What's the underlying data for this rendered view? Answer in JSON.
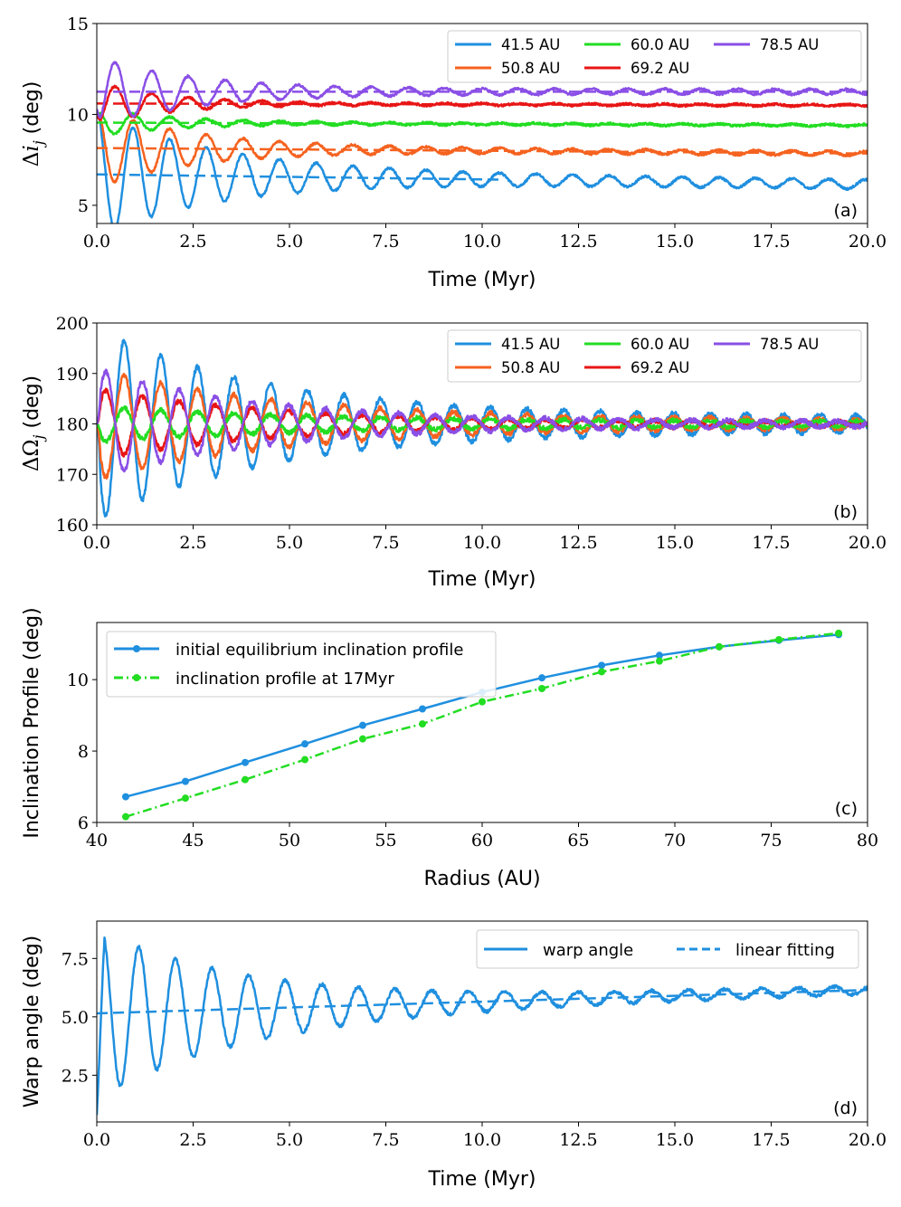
{
  "figure": {
    "panels": [
      "a",
      "b",
      "c",
      "d"
    ]
  },
  "chart_data": [
    {
      "type": "line",
      "panel_tag": "(a)",
      "xlabel": "Time (Myr)",
      "ylabel_prefix": "Δ",
      "ylabel_symbol": "i",
      "ylabel_sub": "j",
      "ylabel_unit": " (deg)",
      "xlim": [
        0,
        20
      ],
      "ylim": [
        4,
        15
      ],
      "xticks": [
        "0.0",
        "2.5",
        "5.0",
        "7.5",
        "10.0",
        "12.5",
        "15.0",
        "17.5",
        "20.0"
      ],
      "xtick_values": [
        0,
        2.5,
        5,
        7.5,
        10,
        12.5,
        15,
        17.5,
        20
      ],
      "yticks": [
        "5",
        "10",
        "15"
      ],
      "ytick_values": [
        5,
        10,
        15
      ],
      "legend_position": "top-right",
      "series": [
        {
          "name": "41.5 AU",
          "color": "#1f8fdf",
          "start": 10.0,
          "mean_start": 6.7,
          "mean_end": 6.15,
          "amp0": 3.4,
          "amp_floor": 0.25,
          "decay": 3.2,
          "period": 0.95,
          "phase": 1.6,
          "fit_end": 10.5
        },
        {
          "name": "50.8 AU",
          "color": "#f5621f",
          "start": 10.0,
          "mean_start": 8.15,
          "mean_end": 7.85,
          "amp0": 2.2,
          "amp_floor": 0.12,
          "decay": 2.5,
          "period": 0.95,
          "phase": 1.6,
          "fit_end": 20
        },
        {
          "name": "60.0 AU",
          "color": "#22dd22",
          "start": 9.8,
          "mean_start": 9.55,
          "mean_end": 9.4,
          "amp0": 0.75,
          "amp_floor": 0.05,
          "decay": 2.0,
          "period": 0.95,
          "phase": 1.6,
          "fit_end": 20
        },
        {
          "name": "69.2 AU",
          "color": "#e81515",
          "start": 10.0,
          "mean_start": 10.6,
          "mean_end": 10.5,
          "amp0": 1.2,
          "amp_floor": 0.05,
          "decay": 1.8,
          "period": 0.95,
          "phase": -1.6,
          "fit_end": 20
        },
        {
          "name": "78.5 AU",
          "color": "#8a4fe6",
          "start": 10.3,
          "mean_start": 11.25,
          "mean_end": 11.25,
          "amp0": 1.9,
          "amp_floor": 0.14,
          "decay": 2.6,
          "period": 0.95,
          "phase": -1.6,
          "fit_end": 20
        }
      ]
    },
    {
      "type": "line",
      "panel_tag": "(b)",
      "xlabel": "Time (Myr)",
      "ylabel_prefix": "ΔΩ",
      "ylabel_sub": "j",
      "ylabel_unit": " (deg)",
      "xlim": [
        0,
        20
      ],
      "ylim": [
        160,
        200
      ],
      "xticks": [
        "0.0",
        "2.5",
        "5.0",
        "7.5",
        "10.0",
        "12.5",
        "15.0",
        "17.5",
        "20.0"
      ],
      "xtick_values": [
        0,
        2.5,
        5,
        7.5,
        10,
        12.5,
        15,
        17.5,
        20
      ],
      "yticks": [
        "160",
        "170",
        "180",
        "190",
        "200"
      ],
      "ytick_values": [
        160,
        170,
        180,
        190,
        200
      ],
      "legend_position": "top-right",
      "series": [
        {
          "name": "41.5 AU",
          "color": "#1f8fdf",
          "amp0": 19,
          "amp_floor": 1.5,
          "decay": 4.5,
          "period": 0.95,
          "phase": 3.14
        },
        {
          "name": "50.8 AU",
          "color": "#f5621f",
          "amp0": 11,
          "amp_floor": 0.8,
          "decay": 5.0,
          "period": 0.95,
          "phase": 3.14
        },
        {
          "name": "60.0 AU",
          "color": "#22dd22",
          "amp0": 3.5,
          "amp_floor": 0.4,
          "decay": 6.0,
          "period": 0.95,
          "phase": 3.14
        },
        {
          "name": "69.2 AU",
          "color": "#e81515",
          "amp0": 7,
          "amp_floor": 0.4,
          "decay": 4.5,
          "period": 0.95,
          "phase": 0
        },
        {
          "name": "78.5 AU",
          "color": "#8a4fe6",
          "amp0": 11,
          "amp_floor": 0.5,
          "decay": 4.2,
          "period": 0.95,
          "phase": 0
        }
      ]
    },
    {
      "type": "line",
      "panel_tag": "(c)",
      "xlabel": "Radius (AU)",
      "ylabel": "Inclination Profile (deg)",
      "xlim": [
        40,
        80
      ],
      "ylim": [
        6,
        11.6
      ],
      "xticks": [
        "40",
        "45",
        "50",
        "55",
        "60",
        "65",
        "70",
        "75",
        "80"
      ],
      "xtick_values": [
        40,
        45,
        50,
        55,
        60,
        65,
        70,
        75,
        80
      ],
      "yticks": [
        "6",
        "8",
        "10"
      ],
      "ytick_values": [
        6,
        8,
        10
      ],
      "legend_position": "top-left",
      "x": [
        41.5,
        44.6,
        47.7,
        50.8,
        53.8,
        56.9,
        60.0,
        63.1,
        66.2,
        69.2,
        72.3,
        75.4,
        78.5
      ],
      "series": [
        {
          "name": "initial equilibrium inclination profile",
          "color": "#1f8fdf",
          "style": "solid",
          "values": [
            6.72,
            7.15,
            7.68,
            8.2,
            8.72,
            9.18,
            9.65,
            10.05,
            10.4,
            10.68,
            10.92,
            11.1,
            11.26
          ]
        },
        {
          "name": "inclination profile at 17Myr",
          "color": "#22dd22",
          "style": "dashdot",
          "values": [
            6.16,
            6.68,
            7.2,
            7.76,
            8.34,
            8.76,
            9.38,
            9.75,
            10.22,
            10.52,
            10.92,
            11.12,
            11.3
          ]
        }
      ]
    },
    {
      "type": "line",
      "panel_tag": "(d)",
      "xlabel": "Time (Myr)",
      "ylabel": "Warp angle (deg)",
      "xlim": [
        0,
        20
      ],
      "ylim": [
        0.5,
        9.1
      ],
      "xticks": [
        "0.0",
        "2.5",
        "5.0",
        "7.5",
        "10.0",
        "12.5",
        "15.0",
        "17.5",
        "20.0"
      ],
      "xtick_values": [
        0,
        2.5,
        5,
        7.5,
        10,
        12.5,
        15,
        17.5,
        20
      ],
      "yticks": [
        "2.5",
        "5.0",
        "7.5"
      ],
      "ytick_values": [
        2.5,
        5.0,
        7.5
      ],
      "legend_position": "top-right",
      "series": [
        {
          "name": "warp angle",
          "color": "#1f8fdf",
          "style": "solid",
          "start": 0.8,
          "mean_start": 5.15,
          "mean_end": 6.15,
          "amp0": 3.6,
          "amp_floor": 0.15,
          "decay": 4.0,
          "period": 0.95
        },
        {
          "name": "linear fitting",
          "color": "#1f8fdf",
          "style": "dashed",
          "fit": [
            5.15,
            6.15
          ]
        }
      ]
    }
  ]
}
